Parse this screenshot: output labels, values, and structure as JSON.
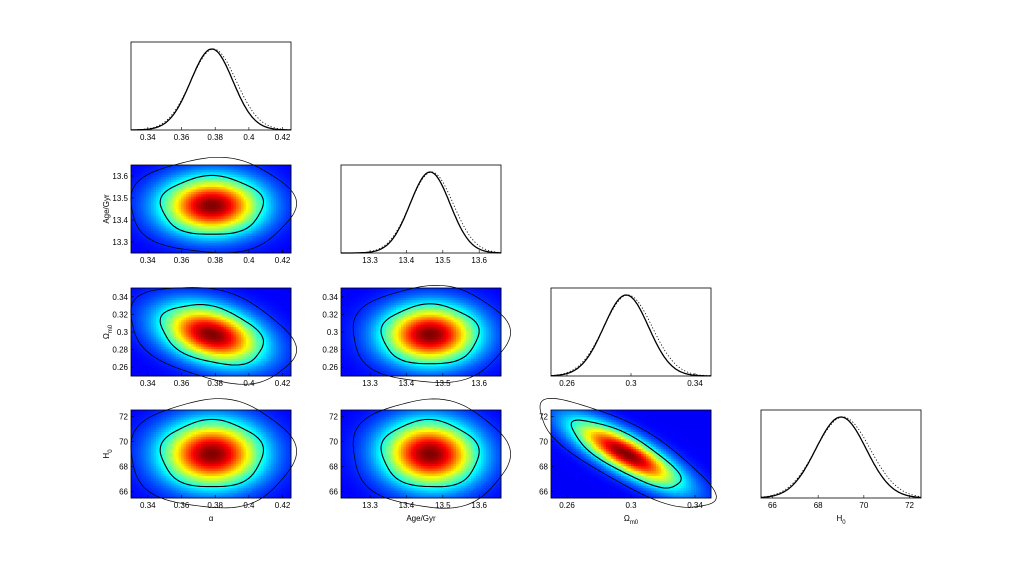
{
  "chart_data": {
    "type": "corner",
    "parameters": [
      {
        "key": "alpha",
        "label": "α",
        "sub": "",
        "ticks": [
          0.34,
          0.36,
          0.38,
          0.4,
          0.42
        ],
        "tick_labels": [
          "0.34",
          "0.36",
          "0.38",
          "0.4",
          "0.42"
        ],
        "range": [
          0.33,
          0.425
        ],
        "mean": 0.378,
        "sd": 0.0125
      },
      {
        "key": "age",
        "label": "Age/Gyr",
        "sub": "",
        "ticks": [
          13.3,
          13.4,
          13.5,
          13.6
        ],
        "tick_labels": [
          "13.3",
          "13.4",
          "13.5",
          "13.6"
        ],
        "range": [
          13.22,
          13.66
        ],
        "mean": 13.465,
        "sd": 0.055
      },
      {
        "key": "om",
        "label": "Ω",
        "sub": "m0",
        "ticks": [
          0.26,
          0.3,
          0.34
        ],
        "tick_labels": [
          "0.26",
          "0.3",
          "0.34"
        ],
        "range": [
          0.25,
          0.35
        ],
        "mean": 0.297,
        "sd": 0.014
      },
      {
        "key": "h0",
        "label": "H",
        "sub": "0",
        "ticks": [
          66,
          68,
          70,
          72
        ],
        "tick_labels": [
          "66",
          "68",
          "70",
          "72"
        ],
        "range": [
          65.5,
          72.5
        ],
        "mean": 69.0,
        "sd": 1.1
      }
    ],
    "y_ticks": {
      "age": [
        "13.3",
        "13.4",
        "13.5",
        "13.6"
      ],
      "om": [
        "0.26",
        "0.28",
        "0.3",
        "0.32",
        "0.34"
      ],
      "h0": [
        "66",
        "68",
        "70",
        "72"
      ]
    },
    "y_tick_values": {
      "age": [
        13.3,
        13.4,
        13.5,
        13.6
      ],
      "om": [
        0.26,
        0.28,
        0.3,
        0.32,
        0.34
      ],
      "h0": [
        66,
        68,
        70,
        72
      ]
    },
    "y_ranges": {
      "age": [
        13.25,
        13.65
      ],
      "om": [
        0.25,
        0.35
      ],
      "h0": [
        65.5,
        72.5
      ]
    },
    "correlations": {
      "alpha-age": 0.0,
      "alpha-om": -0.35,
      "alpha-h0": 0.0,
      "age-om": 0.0,
      "age-h0": -0.05,
      "om-h0": -0.8
    },
    "marginal_line_styles": [
      "solid",
      "dotted"
    ],
    "colormap": "jet"
  }
}
